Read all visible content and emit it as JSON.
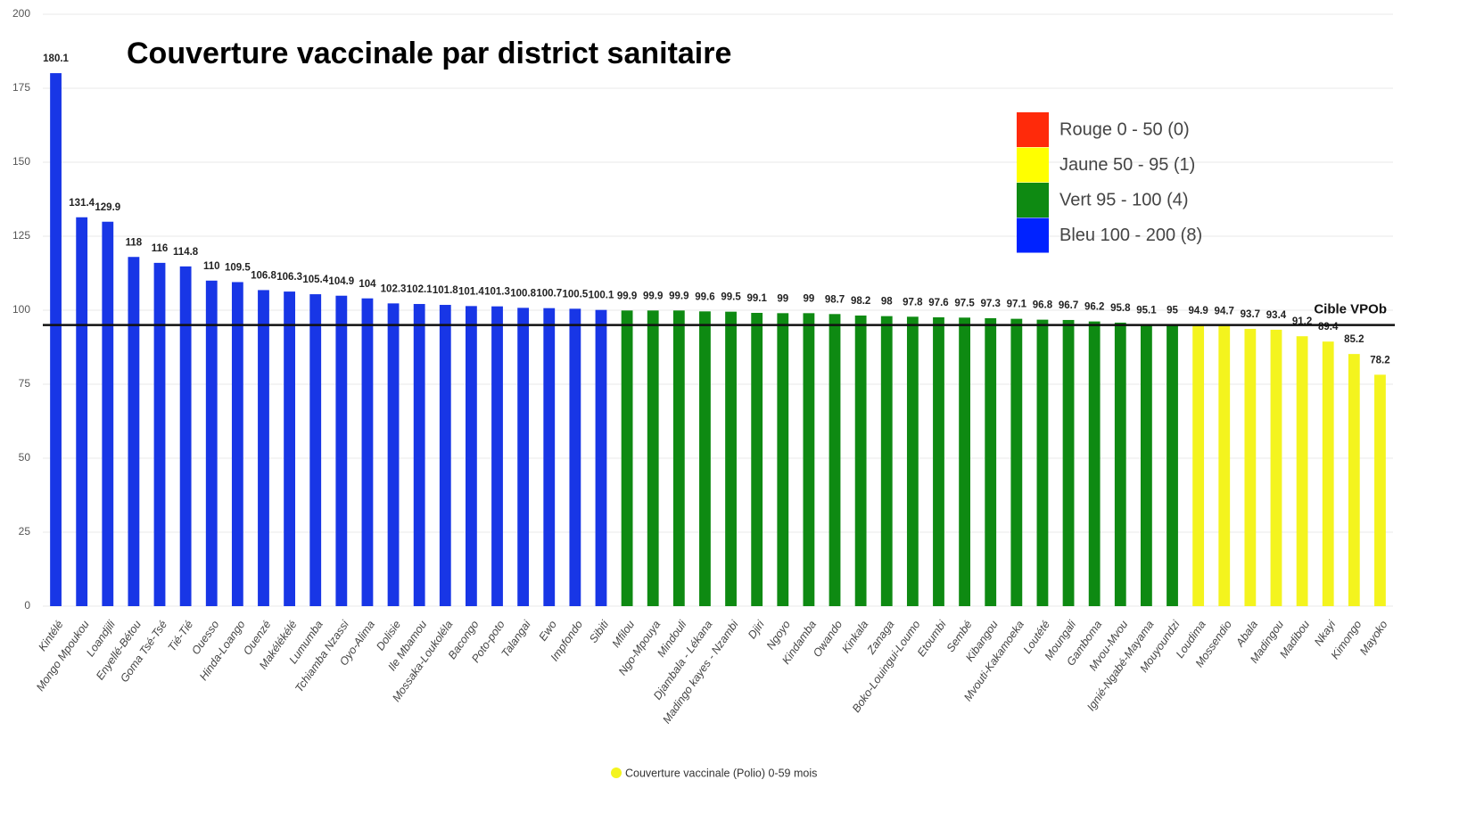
{
  "chart_data": {
    "type": "bar",
    "title": "Couverture vaccinale par district sanitaire",
    "categories": [
      "Kintélé",
      "Mongo Mpoukou",
      "Loandjili",
      "Enyellé-Bétou",
      "Goma Tsé-Tsé",
      "Tié-Tié",
      "Ouesso",
      "Hinda-Loango",
      "Ouenzé",
      "Makélékélé",
      "Lumumba",
      "Tchiamba Nzassi",
      "Oyo-Alima",
      "Dolisie",
      "Ile Mbamou",
      "Mossaka-Loukoléla",
      "Bacongo",
      "Poto-poto",
      "Talangai",
      "Ewo",
      "Impfondo",
      "Sibiti",
      "Mfilou",
      "Ngo-Mpouya",
      "Mindouli",
      "Djambala - Lékana",
      "Madingo kayes - Nzambi",
      "Djiri",
      "Ngoyo",
      "Kindamba",
      "Owando",
      "Kinkala",
      "Zanaga",
      "Boko-Louingui-Loumo",
      "Etoumbi",
      "Sembé",
      "Kibangou",
      "Mvouti-Kakamoeka",
      "Loutété",
      "Moungali",
      "Gamboma",
      "Mvou-Mvou",
      "Ignié-Ngabé-Mayama",
      "Mouyoundzi",
      "Loudima",
      "Mossendio",
      "Abala",
      "Madingou",
      "Madibou",
      "Nkayi",
      "Kimongo",
      "Mayoko"
    ],
    "values": [
      180.1,
      131.4,
      129.9,
      118,
      116,
      114.8,
      110,
      109.5,
      106.8,
      106.3,
      105.4,
      104.9,
      104,
      102.3,
      102.1,
      101.8,
      101.4,
      101.3,
      100.8,
      100.7,
      100.5,
      100.1,
      99.9,
      99.9,
      99.9,
      99.6,
      99.5,
      99.1,
      99,
      99,
      98.7,
      98.2,
      98,
      97.8,
      97.6,
      97.5,
      97.3,
      97.1,
      96.8,
      96.7,
      96.2,
      95.8,
      95.1,
      95,
      94.9,
      94.7,
      93.7,
      93.4,
      91.2,
      89.4,
      85.2,
      78.2
    ],
    "colors": [
      "#1836e6",
      "#1836e6",
      "#1836e6",
      "#1836e6",
      "#1836e6",
      "#1836e6",
      "#1836e6",
      "#1836e6",
      "#1836e6",
      "#1836e6",
      "#1836e6",
      "#1836e6",
      "#1836e6",
      "#1836e6",
      "#1836e6",
      "#1836e6",
      "#1836e6",
      "#1836e6",
      "#1836e6",
      "#1836e6",
      "#1836e6",
      "#1836e6",
      "#0e8a12",
      "#0e8a12",
      "#0e8a12",
      "#0e8a12",
      "#0e8a12",
      "#0e8a12",
      "#0e8a12",
      "#0e8a12",
      "#0e8a12",
      "#0e8a12",
      "#0e8a12",
      "#0e8a12",
      "#0e8a12",
      "#0e8a12",
      "#0e8a12",
      "#0e8a12",
      "#0e8a12",
      "#0e8a12",
      "#0e8a12",
      "#0e8a12",
      "#0e8a12",
      "#0e8a12",
      "#f4f41e",
      "#f4f41e",
      "#f4f41e",
      "#f4f41e",
      "#f4f41e",
      "#f4f41e",
      "#f4f41e",
      "#f4f41e"
    ],
    "ylim": [
      0,
      200
    ],
    "yticks": [
      0,
      25,
      50,
      75,
      100,
      125,
      150,
      175,
      200
    ],
    "grid": true,
    "target": {
      "value": 95,
      "label": "Cible VPOb"
    },
    "legend": [
      {
        "label": "Rouge 0 - 50 (0)",
        "color": "#ff2a0a"
      },
      {
        "label": "Jaune 50 - 95 (1)",
        "color": "#ffff00"
      },
      {
        "label": "Vert 95 - 100 (4)",
        "color": "#0e8a12"
      },
      {
        "label": "Bleu 100 - 200 (8)",
        "color": "#0022ff"
      }
    ],
    "series_name": "Couverture vaccinale (Polio) 0-59 mois",
    "series_color": "#f4f41e"
  }
}
